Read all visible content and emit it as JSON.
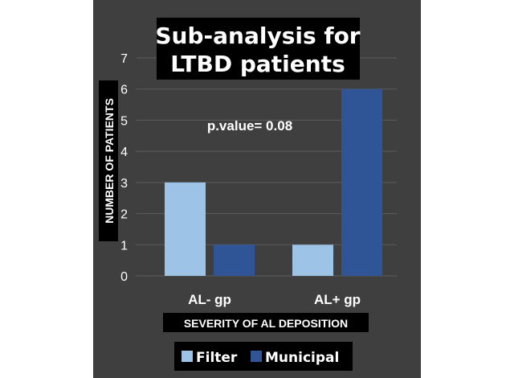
{
  "chart_data": {
    "type": "bar",
    "title_lines": [
      "Sub-analysis for",
      "LTBD patients"
    ],
    "annotation": "p.value= 0.08",
    "xlabel": "SEVERITY OF AL DEPOSITION",
    "ylabel": "NUMBER OF PATIENTS",
    "categories": [
      "AL- gp",
      "AL+ gp"
    ],
    "series": [
      {
        "name": "Filter",
        "values": [
          3,
          1
        ],
        "color": "#9dc3e6"
      },
      {
        "name": "Municipal",
        "values": [
          1,
          6
        ],
        "color": "#2f5597"
      }
    ],
    "ylim": [
      0,
      7
    ],
    "yticks": [
      0,
      1,
      2,
      3,
      4,
      5,
      6,
      7
    ],
    "grid": true,
    "legend_position": "bottom"
  }
}
